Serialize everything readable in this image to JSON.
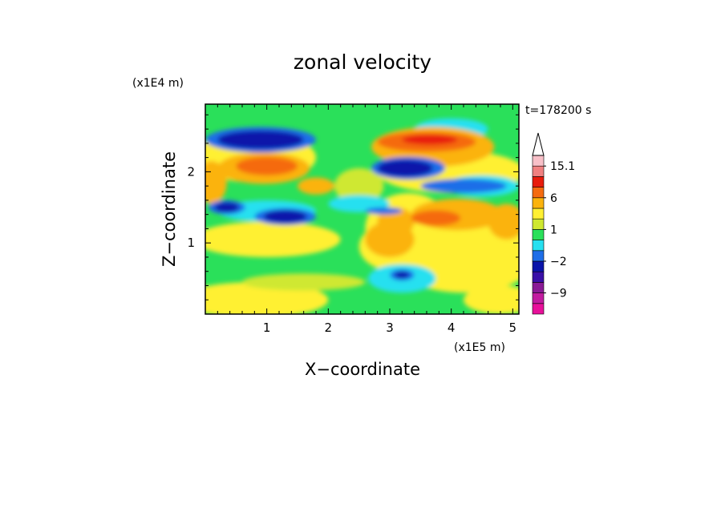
{
  "chart_data": {
    "type": "heatmap",
    "title": "zonal velocity",
    "xlabel": "X−coordinate",
    "ylabel": "Z−coordinate",
    "x_unit": "(x1E5 m)",
    "y_unit": "(x1E4 m)",
    "time_label": "t=178200 s",
    "xlim": [
      0,
      5.1
    ],
    "ylim": [
      0,
      2.95
    ],
    "x_ticks": [
      1,
      2,
      3,
      4,
      5
    ],
    "y_ticks": [
      1,
      2
    ],
    "colorbar": {
      "levels": [
        -15.1,
        -12,
        -9,
        -6,
        -4,
        -2,
        -1,
        0,
        1,
        2,
        4,
        6,
        9,
        12,
        15.1
      ],
      "colors": [
        "#e8109a",
        "#c21ca0",
        "#8a1a96",
        "#3a10a8",
        "#0a14aa",
        "#1e6ee8",
        "#26e0f0",
        "#2ae05a",
        "#cfe830",
        "#fff033",
        "#fbb30d",
        "#f56b10",
        "#e81c0c",
        "#f08080",
        "#f8c0c8"
      ],
      "tick_labels": [
        "15.1",
        "6",
        "1",
        "−2",
        "−9"
      ],
      "tick_values": [
        15.1,
        6,
        1,
        -2,
        -9
      ],
      "extend": "max"
    }
  }
}
